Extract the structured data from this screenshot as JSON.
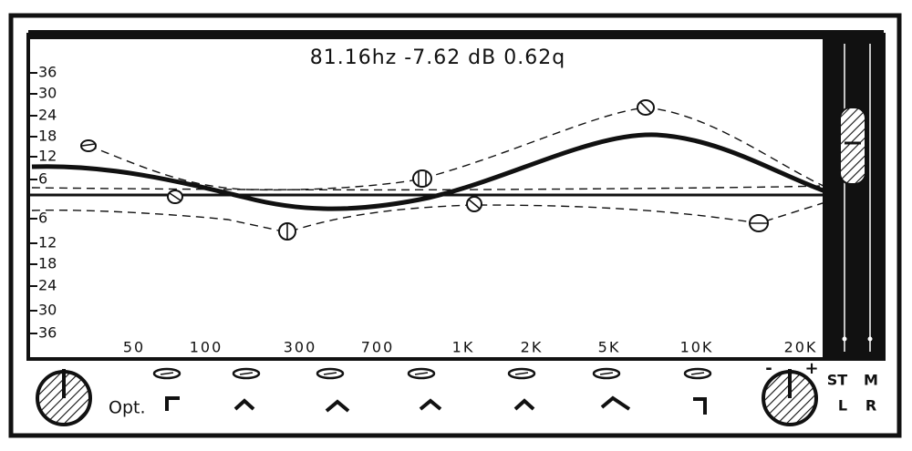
{
  "readout": "81.16hz -7.62 dB 0.62q",
  "graph": {
    "y_labels_upper": [
      "36",
      "30",
      "24",
      "18",
      "12",
      "6"
    ],
    "y_labels_lower": [
      "6",
      "12",
      "18",
      "24",
      "30",
      "36"
    ],
    "x_labels": [
      "50",
      "100",
      "300",
      "700",
      "1K",
      "2K",
      "5K",
      "10K",
      "20K"
    ]
  },
  "controls": {
    "option_label": "Opt.",
    "gain_minus": "-",
    "gain_plus": "+",
    "modes": [
      "ST",
      "M",
      "L",
      "R"
    ]
  }
}
